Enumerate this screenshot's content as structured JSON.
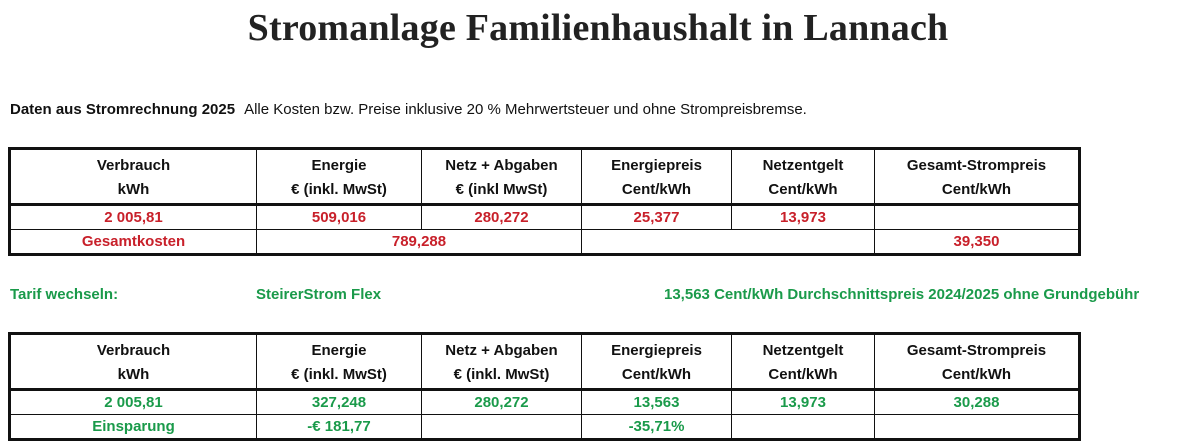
{
  "title": "Stromanlage Familienhaushalt in Lannach",
  "info": {
    "label": "Daten aus Stromrechnung 2025",
    "text": "Alle Kosten bzw. Preise inklusive 20 % Mehrwertsteuer und ohne Strompreisbremse."
  },
  "colors": {
    "red": "#c8202a",
    "green": "#1a9a4a"
  },
  "table1": {
    "headers_line1": [
      "Verbrauch",
      "Energie",
      "Netz + Abgaben",
      "Energiepreis",
      "Netzentgelt",
      "Gesamt-Strompreis"
    ],
    "headers_line2": [
      "kWh",
      "€ (inkl. MwSt)",
      "€ (inkl MwSt)",
      "Cent/kWh",
      "Cent/kWh",
      "Cent/kWh"
    ],
    "row": [
      "2 005,81",
      "509,016",
      "280,272",
      "25,377",
      "13,973",
      ""
    ],
    "total_label": "Gesamtkosten",
    "total_value": "789,288",
    "total_price": "39,350"
  },
  "tarif": {
    "label": "Tarif wechseln:",
    "name": "SteirerStrom Flex",
    "price": "13,563",
    "price_text": "Cent/kWh Durchschnittspreis 2024/2025 ohne Grundgebühr"
  },
  "table2": {
    "headers_line1": [
      "Verbrauch",
      "Energie",
      "Netz + Abgaben",
      "Energiepreis",
      "Netzentgelt",
      "Gesamt-Strompreis"
    ],
    "headers_line2": [
      "kWh",
      "€ (inkl. MwSt)",
      "€ (inkl. MwSt)",
      "Cent/kWh",
      "Cent/kWh",
      "Cent/kWh"
    ],
    "row": [
      "2 005,81",
      "327,248",
      "280,272",
      "13,563",
      "13,973",
      "30,288"
    ],
    "savings_label": "Einsparung",
    "savings_amount": "-€ 181,77",
    "savings_percent": "-35,71%"
  }
}
